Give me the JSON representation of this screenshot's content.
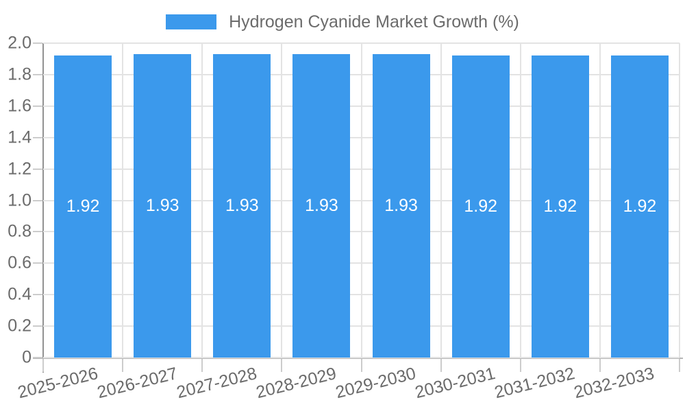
{
  "colors": {
    "bar": "#3B99EC",
    "bar_label": "#FFFFFF",
    "axis_text": "#6B6B6B",
    "grid": "#E3E3E3",
    "y_axis_line": "#919191",
    "x_axis_line": "#B6B6B6",
    "tick": "#CCCCCC",
    "background": "#FFFFFF"
  },
  "legend": {
    "label": "Hydrogen Cyanide Market Growth (%)"
  },
  "chart_data": {
    "type": "bar",
    "title": "Hydrogen Cyanide Market Growth (%)",
    "categories": [
      "2025-2026",
      "2026-2027",
      "2027-2028",
      "2028-2029",
      "2029-2030",
      "2030-2031",
      "2031-2032",
      "2032-2033"
    ],
    "values": [
      1.92,
      1.93,
      1.93,
      1.93,
      1.93,
      1.92,
      1.92,
      1.92
    ],
    "value_labels": [
      "1.92",
      "1.93",
      "1.93",
      "1.93",
      "1.93",
      "1.92",
      "1.92",
      "1.92"
    ],
    "xlabel": "",
    "ylabel": "",
    "ylim": [
      0,
      2.0
    ],
    "ytick_labels": [
      "0",
      "0.2",
      "0.4",
      "0.6",
      "0.8",
      "1.0",
      "1.2",
      "1.4",
      "1.6",
      "1.8",
      "2.0"
    ],
    "grid": true,
    "legend_position": "top",
    "bar_label_position": "center"
  }
}
